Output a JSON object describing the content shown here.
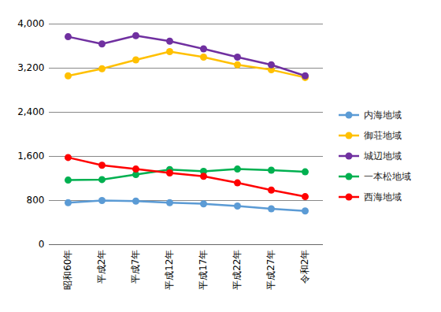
{
  "chart_data": {
    "type": "line",
    "categories": [
      "昭和60年",
      "平成2年",
      "平成7年",
      "平成12年",
      "平成17年",
      "平成22年",
      "平成27年",
      "令和2年"
    ],
    "series": [
      {
        "name": "内海地域",
        "color": "#5b9bd5",
        "values": [
          760,
          800,
          790,
          760,
          740,
          700,
          650,
          610
        ]
      },
      {
        "name": "御荘地域",
        "color": "#ffc000",
        "values": [
          3060,
          3190,
          3350,
          3500,
          3400,
          3260,
          3170,
          3030
        ]
      },
      {
        "name": "城辺地域",
        "color": "#7030a0",
        "values": [
          3770,
          3640,
          3790,
          3690,
          3550,
          3400,
          3260,
          3060
        ]
      },
      {
        "name": "一本松地域",
        "color": "#00b050",
        "values": [
          1170,
          1180,
          1270,
          1360,
          1330,
          1370,
          1350,
          1320
        ]
      },
      {
        "name": "西海地域",
        "color": "#ff0000",
        "values": [
          1580,
          1440,
          1370,
          1300,
          1240,
          1120,
          990,
          870
        ]
      }
    ],
    "ylim": [
      0,
      4000
    ],
    "yticks": [
      0,
      800,
      {
        "value": 1600,
        "label": "1,600"
      },
      {
        "value": 2400,
        "label": "2,400"
      },
      {
        "value": 3200,
        "label": "3,200"
      },
      {
        "value": 4000,
        "label": "4,000"
      }
    ],
    "grid": true,
    "legend": "right",
    "marker": "circle"
  }
}
